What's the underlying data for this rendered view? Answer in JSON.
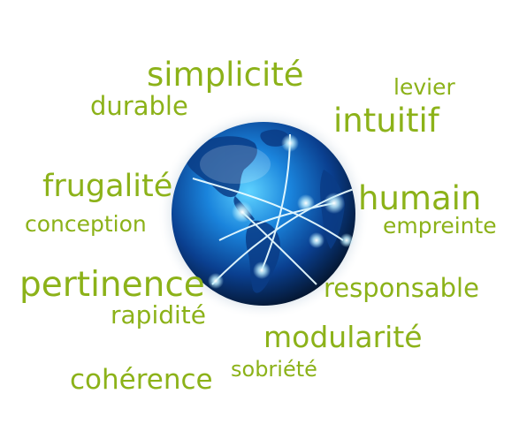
{
  "colors": {
    "text": "#8cb219",
    "globe_dark": "#04152e",
    "globe_mid": "#0a5fb8",
    "globe_light": "#36b4f2",
    "background": "#ffffff"
  },
  "globe": {
    "icon": "network-globe-icon"
  },
  "words": {
    "simplicite": "simplicité",
    "levier": "levier",
    "durable": "durable",
    "intuitif": "intuitif",
    "frugalite": "frugalité",
    "humain": "humain",
    "conception": "conception",
    "empreinte": "empreinte",
    "pertinence": "pertinence",
    "responsable": "responsable",
    "rapidite": "rapidité",
    "modularite": "modularité",
    "sobriete": "sobriété",
    "coherence": "cohérence"
  }
}
